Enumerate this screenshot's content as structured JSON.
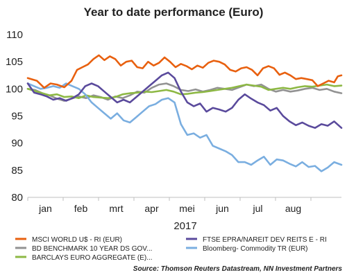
{
  "chart_data": {
    "type": "line",
    "title": "Year to date performance (Euro)",
    "xlabel": "2017",
    "x_tick_labels": [
      "jan",
      "feb",
      "mrt",
      "apr",
      "mei",
      "jun",
      "jul",
      "aug"
    ],
    "ylim": [
      80,
      110
    ],
    "y_ticks": [
      80,
      85,
      90,
      95,
      100,
      105,
      110
    ],
    "grid": false,
    "legend_position": "bottom",
    "series": [
      {
        "name": "MSCI WORLD U$ - RI (EUR)",
        "color": "#e8600f",
        "points": [
          [
            0,
            102.0
          ],
          [
            1,
            101.5
          ],
          [
            1.8,
            100.2
          ],
          [
            2.5,
            101.0
          ],
          [
            3.2,
            100.8
          ],
          [
            4,
            100.3
          ],
          [
            4.8,
            101.5
          ],
          [
            5.4,
            103.5
          ],
          [
            6,
            104.0
          ],
          [
            6.6,
            104.5
          ],
          [
            7.2,
            105.5
          ],
          [
            7.8,
            106.2
          ],
          [
            8.4,
            105.3
          ],
          [
            9,
            106.0
          ],
          [
            9.6,
            105.5
          ],
          [
            10.2,
            104.3
          ],
          [
            10.8,
            105.0
          ],
          [
            11.4,
            105.2
          ],
          [
            12,
            104.0
          ],
          [
            12.6,
            103.8
          ],
          [
            13.2,
            105.0
          ],
          [
            13.8,
            104.3
          ],
          [
            14.4,
            104.8
          ],
          [
            15,
            105.8
          ],
          [
            15.6,
            105.0
          ],
          [
            16.2,
            104.0
          ],
          [
            16.8,
            104.6
          ],
          [
            17.4,
            104.2
          ],
          [
            18,
            103.6
          ],
          [
            18.6,
            104.3
          ],
          [
            19.2,
            103.9
          ],
          [
            19.8,
            104.8
          ],
          [
            20.4,
            105.2
          ],
          [
            21,
            105.0
          ],
          [
            21.6,
            104.5
          ],
          [
            22.2,
            103.5
          ],
          [
            22.8,
            103.2
          ],
          [
            23.4,
            103.8
          ],
          [
            24,
            104.0
          ],
          [
            24.6,
            103.5
          ],
          [
            25.2,
            102.5
          ],
          [
            25.8,
            103.8
          ],
          [
            26.4,
            104.2
          ],
          [
            27,
            103.8
          ],
          [
            27.6,
            102.6
          ],
          [
            28.2,
            103.0
          ],
          [
            28.8,
            102.5
          ],
          [
            29.4,
            101.8
          ],
          [
            30,
            102.0
          ],
          [
            30.6,
            101.8
          ],
          [
            31.2,
            101.6
          ],
          [
            31.8,
            100.5
          ],
          [
            32.4,
            101.0
          ],
          [
            33,
            101.5
          ],
          [
            33.6,
            101.2
          ],
          [
            34,
            102.3
          ],
          [
            34.4,
            102.5
          ]
        ]
      },
      {
        "name": "FTSE EPRA/NAREIT DEV REITS E - RI",
        "color": "#5a4a9c",
        "points": [
          [
            0,
            101.0
          ],
          [
            0.7,
            99.3
          ],
          [
            1.4,
            99.0
          ],
          [
            2.1,
            98.6
          ],
          [
            2.8,
            98.0
          ],
          [
            3.5,
            98.3
          ],
          [
            4.2,
            97.8
          ],
          [
            4.9,
            98.3
          ],
          [
            5.6,
            99.0
          ],
          [
            6.3,
            100.5
          ],
          [
            7,
            101.0
          ],
          [
            7.7,
            100.5
          ],
          [
            8.4,
            99.5
          ],
          [
            9.1,
            98.5
          ],
          [
            9.8,
            97.5
          ],
          [
            10.5,
            98.0
          ],
          [
            11.2,
            97.5
          ],
          [
            11.9,
            98.5
          ],
          [
            12.6,
            99.5
          ],
          [
            13.3,
            100.5
          ],
          [
            14,
            101.5
          ],
          [
            14.7,
            102.5
          ],
          [
            15.4,
            103.0
          ],
          [
            16.1,
            102.0
          ],
          [
            16.8,
            99.5
          ],
          [
            17.5,
            97.5
          ],
          [
            18.2,
            96.8
          ],
          [
            18.9,
            97.3
          ],
          [
            19.6,
            95.8
          ],
          [
            20.3,
            96.5
          ],
          [
            21,
            96.2
          ],
          [
            21.7,
            95.8
          ],
          [
            22.4,
            96.5
          ],
          [
            23.1,
            98.0
          ],
          [
            23.8,
            99.0
          ],
          [
            24.5,
            98.2
          ],
          [
            25.2,
            97.5
          ],
          [
            25.9,
            97.0
          ],
          [
            26.6,
            96.0
          ],
          [
            27.3,
            96.5
          ],
          [
            28,
            95.0
          ],
          [
            28.7,
            94.0
          ],
          [
            29.4,
            93.3
          ],
          [
            30.1,
            93.8
          ],
          [
            30.8,
            93.2
          ],
          [
            31.5,
            92.8
          ],
          [
            32.2,
            93.5
          ],
          [
            32.9,
            93.2
          ],
          [
            33.6,
            94.0
          ],
          [
            34.4,
            92.8
          ]
        ]
      },
      {
        "name": "BD BENCHMARK 10 YEAR DS GOV...",
        "color": "#929292",
        "points": [
          [
            0,
            100.0
          ],
          [
            0.8,
            99.8
          ],
          [
            1.6,
            99.2
          ],
          [
            2.4,
            98.8
          ],
          [
            3.2,
            98.2
          ],
          [
            4,
            97.8
          ],
          [
            4.8,
            98.2
          ],
          [
            5.6,
            98.6
          ],
          [
            6.4,
            98.3
          ],
          [
            7.2,
            98.8
          ],
          [
            8,
            98.5
          ],
          [
            8.8,
            98.0
          ],
          [
            9.6,
            98.6
          ],
          [
            10.4,
            98.3
          ],
          [
            11.2,
            98.8
          ],
          [
            12,
            99.5
          ],
          [
            12.8,
            99.3
          ],
          [
            13.6,
            100.2
          ],
          [
            14.4,
            100.8
          ],
          [
            15.2,
            101.0
          ],
          [
            16,
            100.5
          ],
          [
            16.8,
            99.8
          ],
          [
            17.6,
            99.6
          ],
          [
            18.4,
            99.9
          ],
          [
            19.2,
            99.5
          ],
          [
            20,
            99.8
          ],
          [
            20.8,
            100.2
          ],
          [
            21.6,
            100.0
          ],
          [
            22.4,
            99.8
          ],
          [
            23.2,
            100.3
          ],
          [
            24,
            100.8
          ],
          [
            24.8,
            100.5
          ],
          [
            25.6,
            100.8
          ],
          [
            26.4,
            100.0
          ],
          [
            27.2,
            99.5
          ],
          [
            28,
            99.8
          ],
          [
            28.8,
            99.5
          ],
          [
            29.6,
            99.7
          ],
          [
            30.4,
            100.0
          ],
          [
            31.2,
            100.2
          ],
          [
            32,
            99.8
          ],
          [
            32.8,
            100.0
          ],
          [
            33.6,
            99.5
          ],
          [
            34.4,
            99.2
          ]
        ]
      },
      {
        "name": "Bloomberg- Commodity TR (EUR)",
        "color": "#7aaee0",
        "points": [
          [
            0,
            101.0
          ],
          [
            0.7,
            100.5
          ],
          [
            1.4,
            100.0
          ],
          [
            2.1,
            100.2
          ],
          [
            2.8,
            100.5
          ],
          [
            3.5,
            100.2
          ],
          [
            4.2,
            101.0
          ],
          [
            4.9,
            100.5
          ],
          [
            5.6,
            100.0
          ],
          [
            6.3,
            99.0
          ],
          [
            7,
            97.5
          ],
          [
            7.7,
            96.5
          ],
          [
            8.4,
            95.5
          ],
          [
            9.1,
            94.5
          ],
          [
            9.8,
            95.5
          ],
          [
            10.5,
            94.2
          ],
          [
            11.2,
            93.8
          ],
          [
            11.9,
            94.8
          ],
          [
            12.6,
            95.8
          ],
          [
            13.3,
            96.8
          ],
          [
            14,
            97.2
          ],
          [
            14.7,
            98.0
          ],
          [
            15.4,
            98.3
          ],
          [
            16.1,
            97.5
          ],
          [
            16.8,
            93.5
          ],
          [
            17.5,
            91.5
          ],
          [
            18.2,
            91.8
          ],
          [
            18.9,
            91.0
          ],
          [
            19.6,
            91.5
          ],
          [
            20.3,
            89.5
          ],
          [
            21,
            89.0
          ],
          [
            21.7,
            88.5
          ],
          [
            22.4,
            87.8
          ],
          [
            23.1,
            86.5
          ],
          [
            23.8,
            86.5
          ],
          [
            24.5,
            86.0
          ],
          [
            25.2,
            86.8
          ],
          [
            25.9,
            87.5
          ],
          [
            26.6,
            86.0
          ],
          [
            27.3,
            87.0
          ],
          [
            28,
            86.8
          ],
          [
            28.7,
            86.2
          ],
          [
            29.4,
            85.7
          ],
          [
            30.1,
            86.5
          ],
          [
            30.8,
            85.6
          ],
          [
            31.5,
            85.8
          ],
          [
            32.2,
            84.8
          ],
          [
            32.9,
            85.5
          ],
          [
            33.6,
            86.5
          ],
          [
            34.4,
            86.0
          ]
        ]
      },
      {
        "name": "BARCLAYS EURO AGGREGATE (E)...",
        "color": "#8db844",
        "points": [
          [
            0,
            100.0
          ],
          [
            0.8,
            99.6
          ],
          [
            1.6,
            99.2
          ],
          [
            2.4,
            98.8
          ],
          [
            3.2,
            99.0
          ],
          [
            4,
            98.5
          ],
          [
            4.8,
            98.6
          ],
          [
            5.6,
            98.3
          ],
          [
            6.4,
            98.8
          ],
          [
            7.2,
            98.5
          ],
          [
            8,
            98.4
          ],
          [
            8.8,
            98.3
          ],
          [
            9.6,
            98.5
          ],
          [
            10.4,
            99.0
          ],
          [
            11.2,
            99.2
          ],
          [
            12,
            99.3
          ],
          [
            12.8,
            99.5
          ],
          [
            13.6,
            99.4
          ],
          [
            14.4,
            99.6
          ],
          [
            15.2,
            99.8
          ],
          [
            16,
            99.5
          ],
          [
            16.8,
            99.0
          ],
          [
            17.6,
            99.1
          ],
          [
            18.4,
            99.3
          ],
          [
            19.2,
            99.4
          ],
          [
            20,
            99.6
          ],
          [
            20.8,
            99.8
          ],
          [
            21.6,
            100.0
          ],
          [
            22.4,
            100.2
          ],
          [
            23.2,
            100.5
          ],
          [
            24,
            100.8
          ],
          [
            24.8,
            100.6
          ],
          [
            25.6,
            100.4
          ],
          [
            26.4,
            99.8
          ],
          [
            27.2,
            100.0
          ],
          [
            28,
            100.2
          ],
          [
            28.8,
            100.0
          ],
          [
            29.6,
            100.3
          ],
          [
            30.4,
            100.5
          ],
          [
            31.2,
            100.4
          ],
          [
            32,
            100.6
          ],
          [
            32.8,
            100.8
          ],
          [
            33.6,
            100.5
          ],
          [
            34.4,
            100.6
          ]
        ]
      }
    ]
  },
  "source_note": "Source: Thomson Reuters Datastream, NN Investment Partners"
}
